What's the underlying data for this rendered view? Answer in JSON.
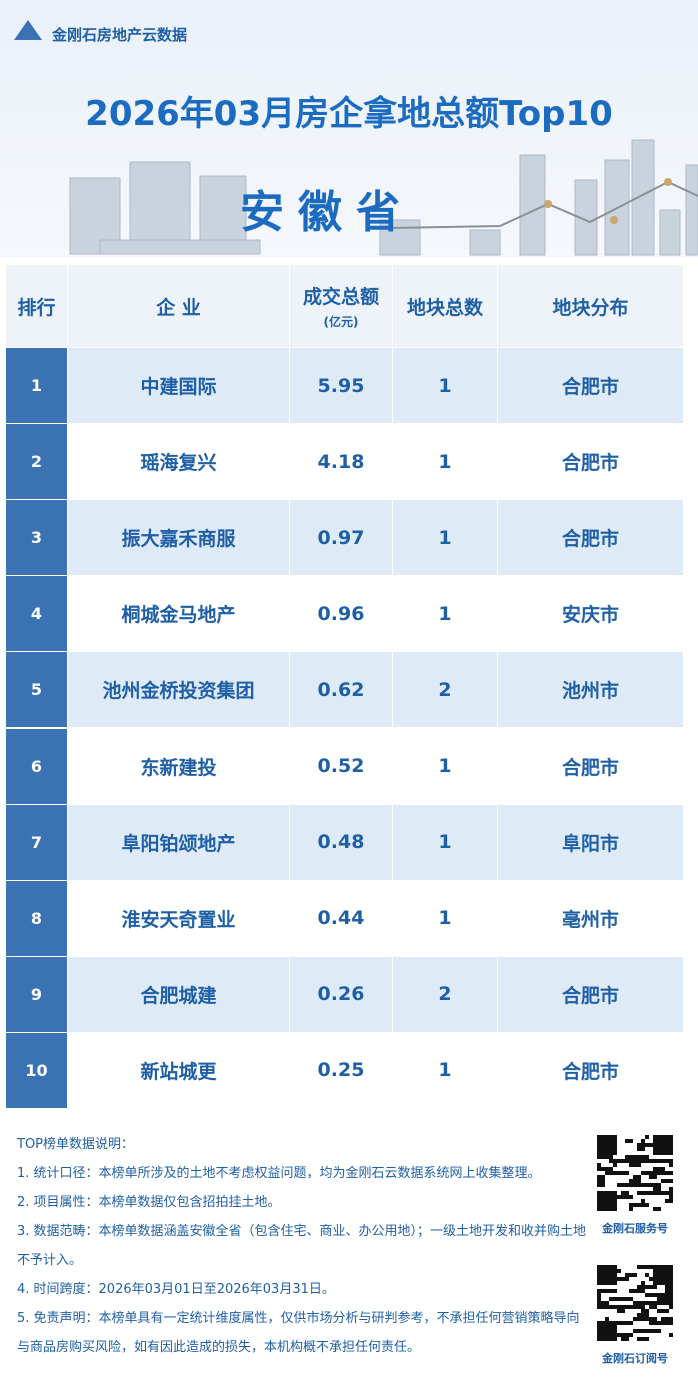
{
  "header": {
    "brand": "金刚石房地产云数据",
    "title": "2026年03月房企拿地总额Top10",
    "subtitle": "安徽省"
  },
  "table": {
    "columns": [
      "排行",
      "企 业",
      "成交总额",
      "地块总数",
      "地块分布"
    ],
    "amount_unit": "(亿元)",
    "rows": [
      [
        1,
        "中建国际",
        5.95,
        1,
        "合肥市"
      ],
      [
        2,
        "瑶海复兴",
        4.18,
        1,
        "合肥市"
      ],
      [
        3,
        "振大嘉禾商服",
        0.97,
        1,
        "合肥市"
      ],
      [
        4,
        "桐城金马地产",
        0.96,
        1,
        "安庆市"
      ],
      [
        5,
        "池州金桥投资集团",
        0.62,
        2,
        "池州市"
      ],
      [
        6,
        "东新建投",
        0.52,
        1,
        "合肥市"
      ],
      [
        7,
        "阜阳铂颂地产",
        0.48,
        1,
        "阜阳市"
      ],
      [
        8,
        "淮安天奇置业",
        0.44,
        1,
        "亳州市"
      ],
      [
        9,
        "合肥城建",
        0.26,
        2,
        "合肥市"
      ],
      [
        10,
        "新站城更",
        0.25,
        1,
        "合肥市"
      ]
    ]
  },
  "notes": {
    "heading": "TOP榜单数据说明：",
    "items": [
      "1. 统计口径：本榜单所涉及的土地不考虑权益问题，均为金刚石云数据系统网上收集整理。",
      "2. 项目属性：本榜单数据仅包含招拍挂土地。",
      "3. 数据范畴：本榜单数据涵盖安徽全省（包含住宅、商业、办公用地）；一级土地开发和收并购土地不予计入。",
      "4. 时间跨度：2026年03月01日至2026年03月31日。",
      "5. 免责声明：本榜单具有一定统计维度属性，仅供市场分析与研判参考，不承担任何营销策略导向与商品房购买风险，如有因此造成的损失，本机构概不承担任何责任。"
    ]
  },
  "qr_codes": [
    {
      "label": "金刚石服务号"
    },
    {
      "label": "金刚石订阅号"
    }
  ]
}
